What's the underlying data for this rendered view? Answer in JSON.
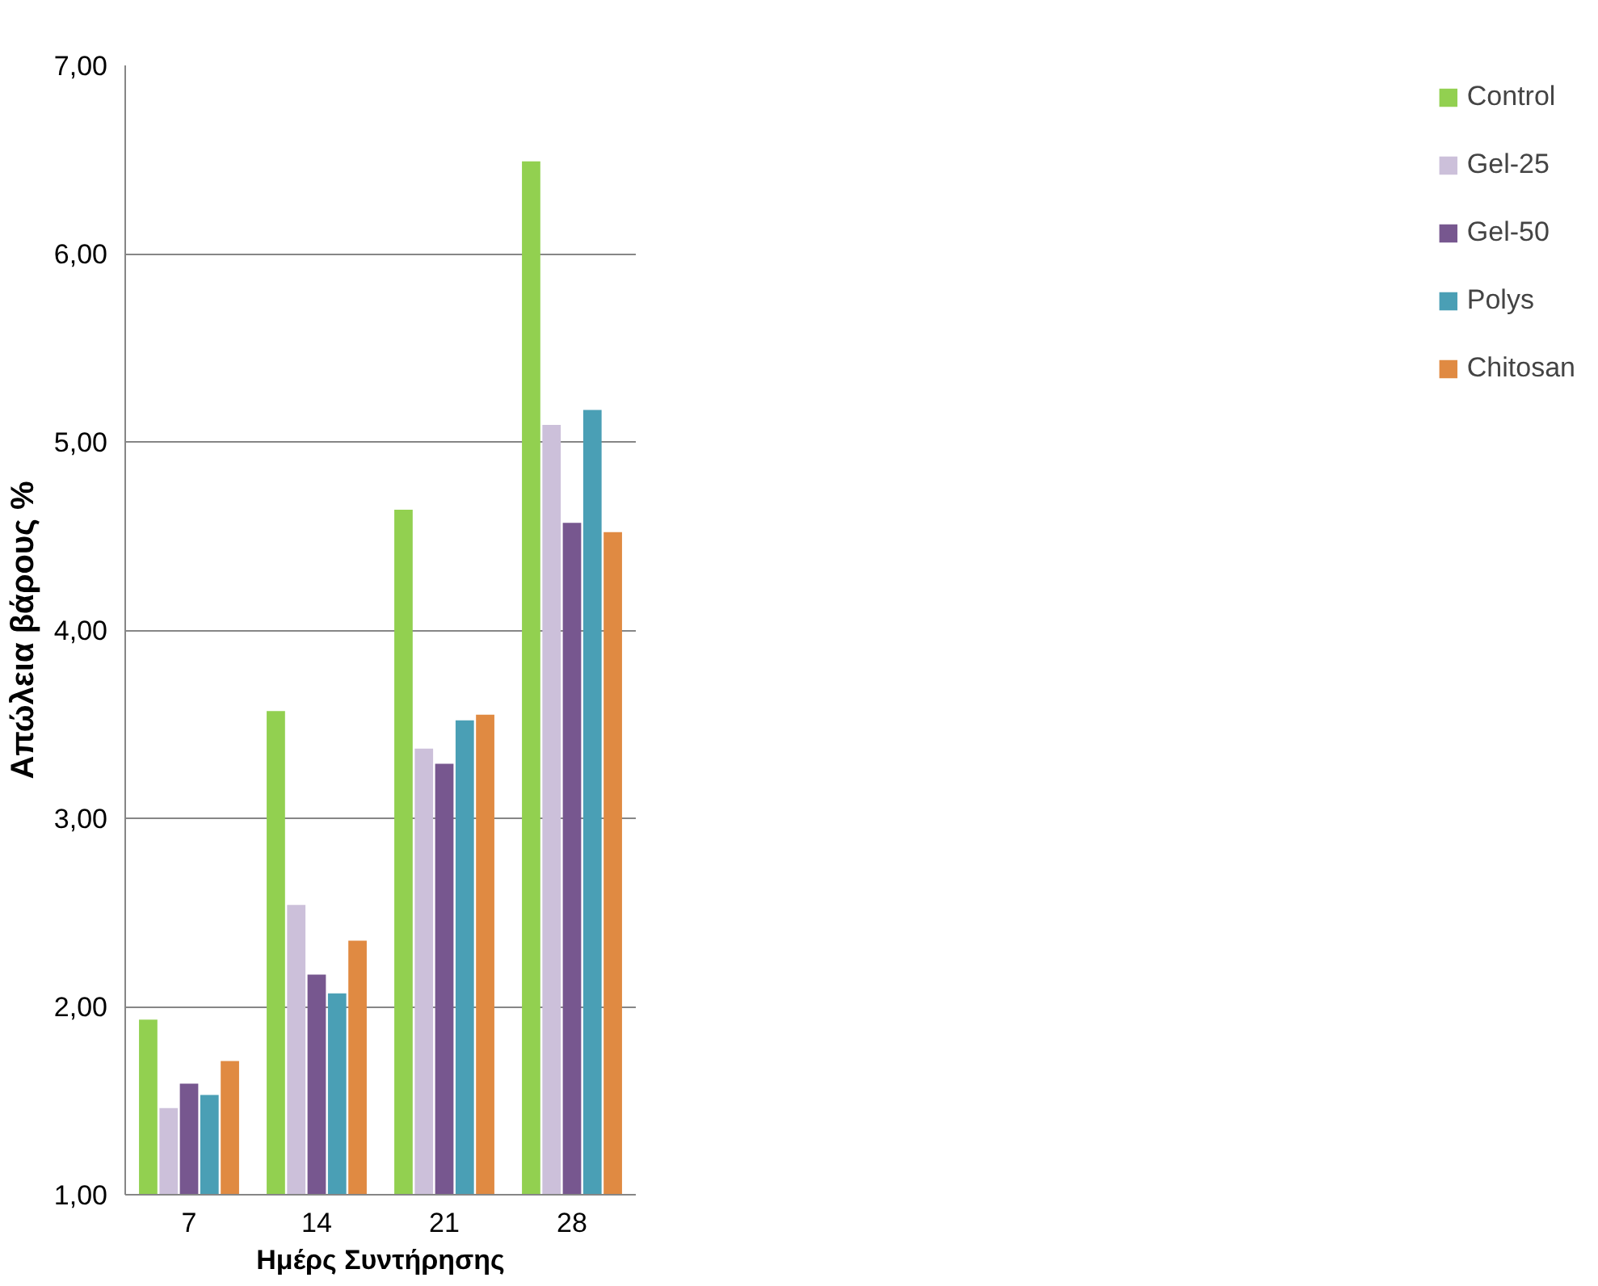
{
  "chart_data": {
    "type": "bar",
    "xlabel": "Ημέρς Συντήρησης",
    "ylabel": "Απώλεια βάρους %",
    "categories": [
      "7",
      "14",
      "21",
      "28"
    ],
    "series": [
      {
        "name": "Control",
        "color": "#92d050",
        "values": [
          1.93,
          3.57,
          4.64,
          6.49
        ]
      },
      {
        "name": "Gel-25",
        "color": "#ccc0da",
        "values": [
          1.46,
          2.54,
          3.37,
          5.09
        ]
      },
      {
        "name": "Gel-50",
        "color": "#77578f",
        "values": [
          1.59,
          2.17,
          3.29,
          4.57
        ]
      },
      {
        "name": "Polys",
        "color": "#4a9fb5",
        "values": [
          1.53,
          2.07,
          3.52,
          5.17
        ]
      },
      {
        "name": "Chitosan",
        "color": "#e08a42",
        "values": [
          1.71,
          2.35,
          3.55,
          4.52
        ]
      }
    ],
    "ylim": [
      1,
      7
    ],
    "yticks": [
      {
        "value": 1,
        "label": "1,00"
      },
      {
        "value": 2,
        "label": "2,00"
      },
      {
        "value": 3,
        "label": "3,00"
      },
      {
        "value": 4,
        "label": "4,00"
      },
      {
        "value": 5,
        "label": "5,00"
      },
      {
        "value": 6,
        "label": "6,00"
      },
      {
        "value": 7,
        "label": "7,00"
      }
    ],
    "grid": "y",
    "legend": "right"
  }
}
